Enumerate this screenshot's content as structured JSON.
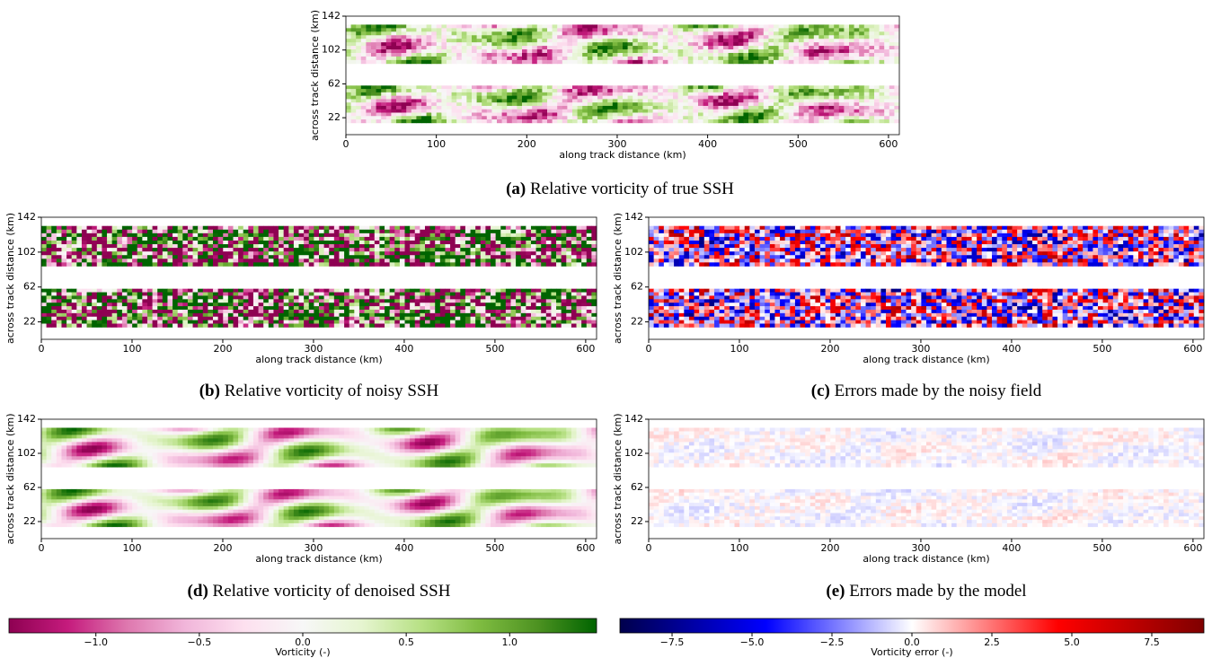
{
  "chart_data": [
    {
      "type": "heatmap",
      "caption_label": "(a)",
      "caption": "Relative vorticity of true SSH",
      "xlabel": "along track distance (km)",
      "ylabel": "across track distance (km)",
      "xlim": [
        0,
        612
      ],
      "ylim": [
        2,
        142
      ],
      "xticks": [
        0,
        100,
        200,
        300,
        400,
        500,
        600
      ],
      "yticks": [
        22,
        62,
        102,
        142
      ],
      "cmap": "PiYG"
    },
    {
      "type": "heatmap",
      "caption_label": "(b)",
      "caption": "Relative vorticity of noisy SSH",
      "xlabel": "along track distance (km)",
      "ylabel": "across track distance (km)",
      "xlim": [
        0,
        612
      ],
      "ylim": [
        2,
        142
      ],
      "xticks": [
        0,
        100,
        200,
        300,
        400,
        500,
        600
      ],
      "yticks": [
        22,
        62,
        102,
        142
      ],
      "cmap": "PiYG"
    },
    {
      "type": "heatmap",
      "caption_label": "(c)",
      "caption": "Errors made by the noisy field",
      "xlabel": "along track distance (km)",
      "ylabel": "across track distance (km)",
      "xlim": [
        0,
        612
      ],
      "ylim": [
        2,
        142
      ],
      "xticks": [
        0,
        100,
        200,
        300,
        400,
        500,
        600
      ],
      "yticks": [
        22,
        62,
        102,
        142
      ],
      "cmap": "seismic"
    },
    {
      "type": "heatmap",
      "caption_label": "(d)",
      "caption": "Relative vorticity of denoised SSH",
      "xlabel": "along track distance (km)",
      "ylabel": "across track distance (km)",
      "xlim": [
        0,
        612
      ],
      "ylim": [
        2,
        142
      ],
      "xticks": [
        0,
        100,
        200,
        300,
        400,
        500,
        600
      ],
      "yticks": [
        22,
        62,
        102,
        142
      ],
      "cmap": "PiYG"
    },
    {
      "type": "heatmap",
      "caption_label": "(e)",
      "caption": "Errors made by the model",
      "xlabel": "along track distance (km)",
      "ylabel": "across track distance (km)",
      "xlim": [
        0,
        612
      ],
      "ylim": [
        2,
        142
      ],
      "xticks": [
        0,
        100,
        200,
        300,
        400,
        500,
        600
      ],
      "yticks": [
        22,
        62,
        102,
        142
      ],
      "cmap": "seismic"
    },
    {
      "type": "colorbar",
      "label": "Vorticity (-)",
      "clim": [
        -1.42,
        1.42
      ],
      "ticks": [
        {
          "value": -1.0,
          "label": "−1.0"
        },
        {
          "value": -0.5,
          "label": "−0.5"
        },
        {
          "value": 0.0,
          "label": "0.0"
        },
        {
          "value": 0.5,
          "label": "0.5"
        },
        {
          "value": 1.0,
          "label": "1.0"
        }
      ],
      "colors": [
        "#8e0152",
        "#c51b7d",
        "#de77ae",
        "#f1b6da",
        "#fde0ef",
        "#f7f7f7",
        "#e6f5d0",
        "#b8e186",
        "#7fbc41",
        "#4d9221",
        "#006400"
      ]
    },
    {
      "type": "colorbar",
      "label": "Vorticity error (-)",
      "clim": [
        -9.13,
        9.13
      ],
      "ticks": [
        {
          "value": -7.5,
          "label": "−7.5"
        },
        {
          "value": -5.0,
          "label": "−5.0"
        },
        {
          "value": -2.5,
          "label": "−2.5"
        },
        {
          "value": 0.0,
          "label": "0.0"
        },
        {
          "value": 2.5,
          "label": "2.5"
        },
        {
          "value": 5.0,
          "label": "5.0"
        },
        {
          "value": 7.5,
          "label": "7.5"
        }
      ],
      "colors": [
        "#00004c",
        "#0000ff",
        "#ffffff",
        "#ff0000",
        "#7f0000"
      ]
    }
  ]
}
